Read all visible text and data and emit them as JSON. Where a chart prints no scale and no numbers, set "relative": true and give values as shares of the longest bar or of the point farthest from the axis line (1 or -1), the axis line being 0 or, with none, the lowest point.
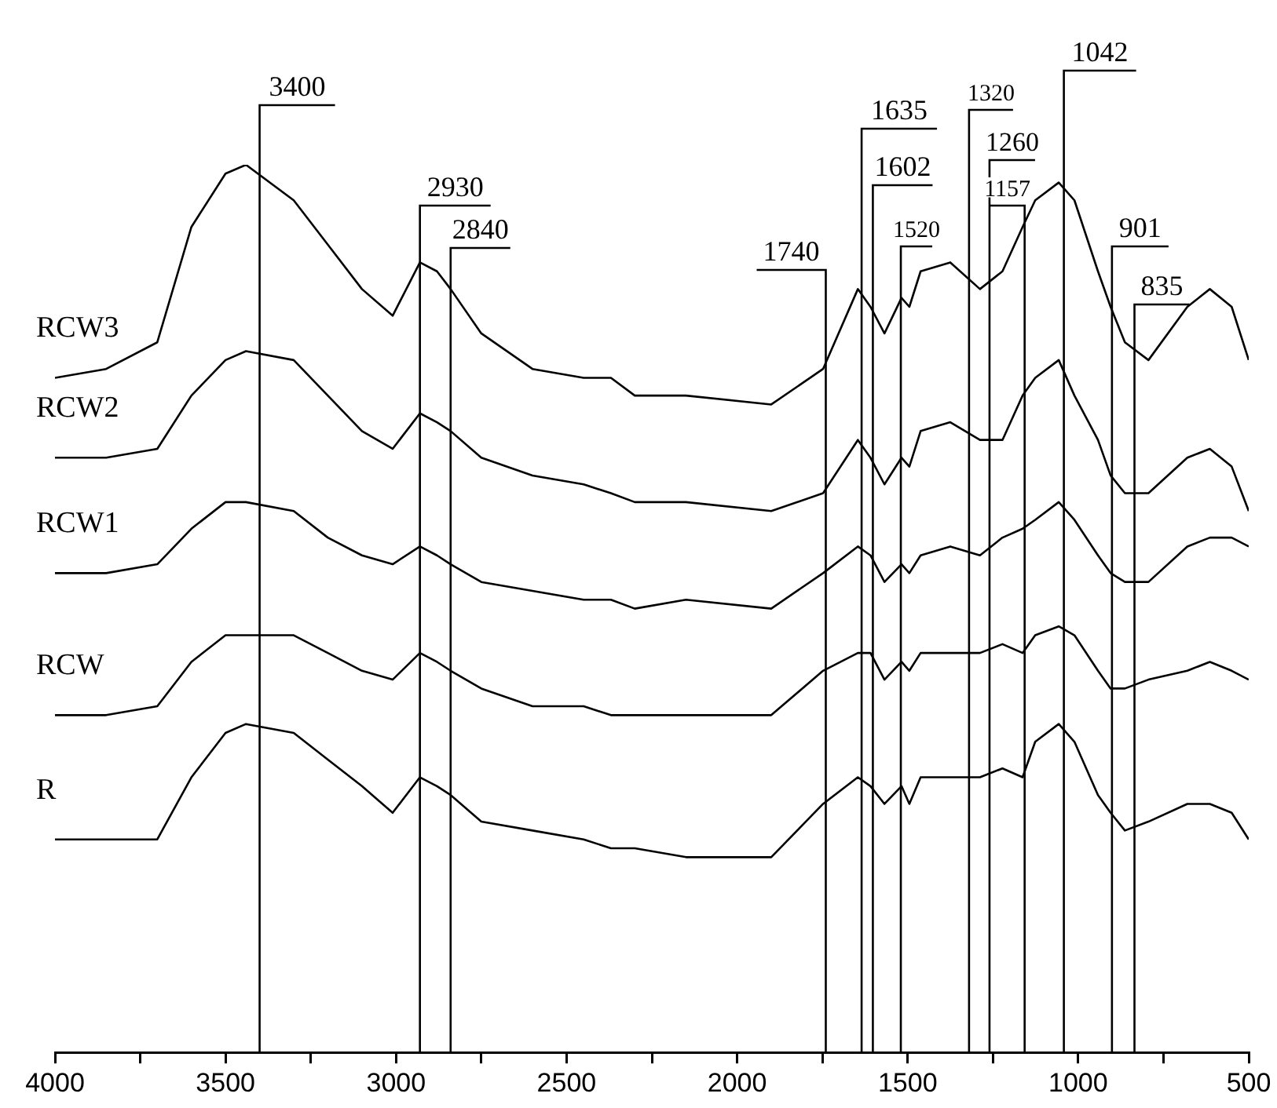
{
  "chart_data": {
    "type": "line",
    "relative": true,
    "marker": "none",
    "line_style": "solid",
    "x": [
      4000,
      3850,
      3700,
      3600,
      3500,
      3440,
      3300,
      3200,
      3100,
      3010,
      2930,
      2880,
      2840,
      2750,
      2600,
      2450,
      2370,
      2300,
      2150,
      1900,
      1748,
      1646,
      1609,
      1568,
      1518,
      1495,
      1462,
      1375,
      1288,
      1222,
      1163,
      1126,
      1057,
      1011,
      942,
      905,
      863,
      794,
      680,
      614,
      550,
      500
    ],
    "xlim": [
      4000,
      500
    ],
    "xticks": [
      4000,
      {
        "value": 3750,
        "label": null
      },
      3500,
      {
        "value": 3250,
        "label": null
      },
      3000,
      {
        "value": 2750,
        "label": null
      },
      2500,
      {
        "value": 2250,
        "label": null
      },
      2000,
      {
        "value": 1750,
        "label": null
      },
      1500,
      {
        "value": 1250,
        "label": null
      },
      1000,
      {
        "value": 750,
        "label": null
      },
      500
    ],
    "series": [
      {
        "name": "RCW3",
        "color": "#000000",
        "values": [
          0.76,
          0.77,
          0.8,
          0.93,
          0.99,
          1.0,
          0.96,
          0.91,
          0.86,
          0.83,
          0.89,
          0.88,
          0.86,
          0.81,
          0.77,
          0.76,
          0.76,
          0.74,
          0.74,
          0.73,
          0.77,
          0.86,
          0.84,
          0.81,
          0.85,
          0.84,
          0.88,
          0.89,
          0.86,
          0.88,
          0.93,
          0.96,
          0.98,
          0.96,
          0.88,
          0.84,
          0.8,
          0.78,
          0.84,
          0.86,
          0.84,
          0.78
        ]
      },
      {
        "name": "RCW2",
        "color": "#000000",
        "values": [
          0.67,
          0.67,
          0.68,
          0.74,
          0.78,
          0.79,
          0.78,
          0.74,
          0.7,
          0.68,
          0.72,
          0.71,
          0.7,
          0.67,
          0.65,
          0.64,
          0.63,
          0.62,
          0.62,
          0.61,
          0.63,
          0.69,
          0.67,
          0.64,
          0.67,
          0.66,
          0.7,
          0.71,
          0.69,
          0.69,
          0.74,
          0.76,
          0.78,
          0.74,
          0.69,
          0.65,
          0.63,
          0.63,
          0.67,
          0.68,
          0.66,
          0.61
        ]
      },
      {
        "name": "RCW1",
        "color": "#000000",
        "values": [
          0.54,
          0.54,
          0.55,
          0.59,
          0.62,
          0.62,
          0.61,
          0.58,
          0.56,
          0.55,
          0.57,
          0.56,
          0.55,
          0.53,
          0.52,
          0.51,
          0.51,
          0.5,
          0.51,
          0.5,
          0.54,
          0.57,
          0.56,
          0.53,
          0.55,
          0.54,
          0.56,
          0.57,
          0.56,
          0.58,
          0.59,
          0.6,
          0.62,
          0.6,
          0.56,
          0.54,
          0.53,
          0.53,
          0.57,
          0.58,
          0.58,
          0.57
        ]
      },
      {
        "name": "RCW",
        "color": "#000000",
        "values": [
          0.38,
          0.38,
          0.39,
          0.44,
          0.47,
          0.47,
          0.47,
          0.45,
          0.43,
          0.42,
          0.45,
          0.44,
          0.43,
          0.41,
          0.39,
          0.39,
          0.38,
          0.38,
          0.38,
          0.38,
          0.43,
          0.45,
          0.45,
          0.42,
          0.44,
          0.43,
          0.45,
          0.45,
          0.45,
          0.46,
          0.45,
          0.47,
          0.48,
          0.47,
          0.43,
          0.41,
          0.41,
          0.42,
          0.43,
          0.44,
          0.43,
          0.42
        ]
      },
      {
        "name": "R",
        "color": "#000000",
        "values": [
          0.24,
          0.24,
          0.24,
          0.31,
          0.36,
          0.37,
          0.36,
          0.33,
          0.3,
          0.27,
          0.31,
          0.3,
          0.29,
          0.26,
          0.25,
          0.24,
          0.23,
          0.23,
          0.22,
          0.22,
          0.28,
          0.31,
          0.3,
          0.28,
          0.3,
          0.28,
          0.31,
          0.31,
          0.31,
          0.32,
          0.31,
          0.35,
          0.37,
          0.35,
          0.29,
          0.27,
          0.25,
          0.26,
          0.28,
          0.28,
          0.27,
          0.24
        ]
      }
    ],
    "ref_lines": [
      {
        "axis": "x",
        "value": 3400,
        "label": "3400"
      },
      {
        "axis": "x",
        "value": 2930,
        "label": "2930"
      },
      {
        "axis": "x",
        "value": 2840,
        "label": "2840"
      },
      {
        "axis": "x",
        "value": 1740,
        "label": "1740"
      },
      {
        "axis": "x",
        "value": 1635,
        "label": "1635"
      },
      {
        "axis": "x",
        "value": 1602,
        "label": "1602"
      },
      {
        "axis": "x",
        "value": 1520,
        "label": "1520"
      },
      {
        "axis": "x",
        "value": 1320,
        "label": "1320"
      },
      {
        "axis": "x",
        "value": 1260,
        "label": "1260"
      },
      {
        "axis": "x",
        "value": 1157,
        "label": "1157"
      },
      {
        "axis": "x",
        "value": 1042,
        "label": "1042"
      },
      {
        "axis": "x",
        "value": 901,
        "label": "901"
      },
      {
        "axis": "x",
        "value": 835,
        "label": "835"
      }
    ]
  }
}
